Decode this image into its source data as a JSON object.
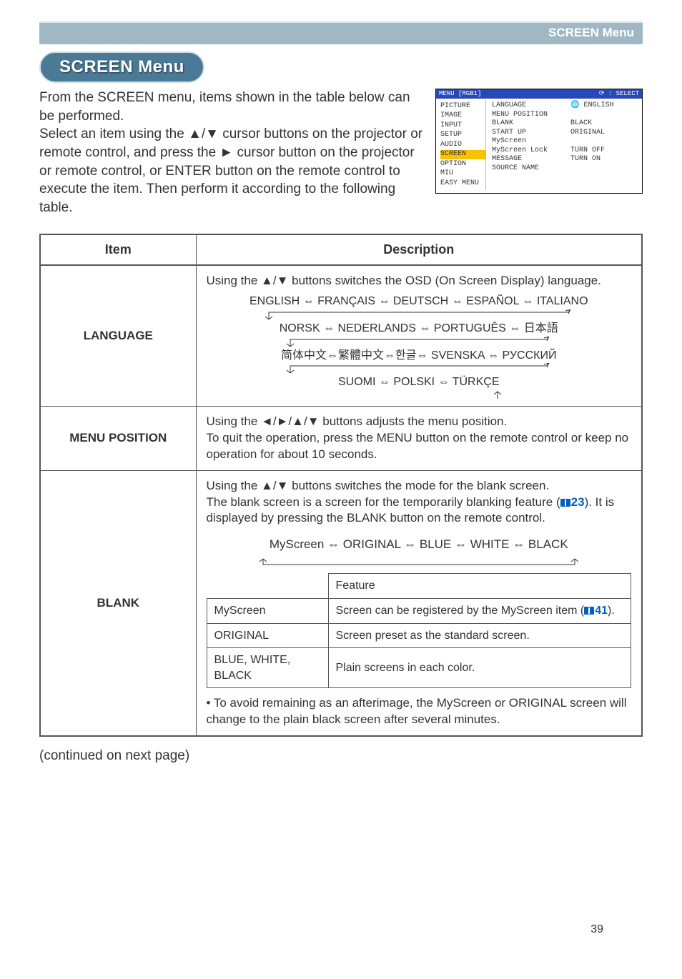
{
  "header": {
    "title": "SCREEN Menu"
  },
  "section_title": "SCREEN Menu",
  "intro_text": "From the SCREEN menu, items shown in the table below can be performed.\nSelect an item using the ▲/▼ cursor buttons on the projector or remote control, and press the ► cursor button on the projector or remote control, or ENTER button on the remote control to execute the item. Then perform it according to the following table.",
  "osd": {
    "head_left": "MENU [RGB1]",
    "head_right": "⟳ : SELECT",
    "left_items": [
      "PICTURE",
      "IMAGE",
      "INPUT",
      "SETUP",
      "AUDIO",
      "SCREEN",
      "OPTION",
      "MIU",
      "EASY MENU"
    ],
    "highlight_index": 5,
    "right_rows": [
      {
        "l": "LANGUAGE",
        "r": "🌐 ENGLISH"
      },
      {
        "l": "MENU POSITION",
        "r": ""
      },
      {
        "l": "BLANK",
        "r": "BLACK"
      },
      {
        "l": "START UP",
        "r": "ORIGINAL"
      },
      {
        "l": "MyScreen",
        "r": ""
      },
      {
        "l": "MyScreen Lock",
        "r": "TURN OFF"
      },
      {
        "l": "MESSAGE",
        "r": "TURN ON"
      },
      {
        "l": "SOURCE NAME",
        "r": ""
      }
    ]
  },
  "table": {
    "head_item": "Item",
    "head_desc": "Description",
    "language": {
      "name": "LANGUAGE",
      "lead": "Using the ▲/▼ buttons switches the OSD (On Screen Display) language.",
      "line1": "ENGLISH ⇔ FRANÇAIS ⇔ DEUTSCH ⇔ ESPAÑOL ⇔ ITALIANO",
      "line2": "NORSK ⇔ NEDERLANDS ⇔ PORTUGUÊS ⇔ 日本語",
      "line3": "简体中文⇔繁體中文⇔한글⇔ SVENSKA ⇔ РУССКИЙ",
      "line4": "SUOMI ⇔ POLSKI ⇔ TÜRKÇE"
    },
    "menu_position": {
      "name": "MENU POSITION",
      "desc": "Using the ◄/►/▲/▼ buttons adjusts the menu position.\nTo quit the operation, press the MENU button on the remote control or keep no operation for about 10 seconds."
    },
    "blank": {
      "name": "BLANK",
      "lead1": "Using the ▲/▼ buttons switches the mode for the blank screen.\nThe blank screen is a screen for the temporarily blanking feature",
      "ref1_text": "23",
      "lead1b": "). It is displayed by pressing the BLANK button on the remote control.",
      "options": "MyScreen ⇔ ORIGINAL ⇔ BLUE ⇔ WHITE ⇔ BLACK",
      "sub_head": "Feature",
      "rows": [
        {
          "k": "MyScreen",
          "v_pre": "Screen can be registered by the MyScreen item (",
          "ref": "41",
          "v_post": ")."
        },
        {
          "k": "ORIGINAL",
          "v": "Screen preset as the standard screen."
        },
        {
          "k": "BLUE, WHITE, BLACK",
          "v": "Plain screens in each color."
        }
      ],
      "note": "• To avoid remaining as an afterimage, the MyScreen or ORIGINAL screen will change to the plain black screen after several minutes."
    }
  },
  "continued": "(continued on next page)",
  "page_number": "39",
  "colors": {
    "header_bar_bg": "#a0b8c4",
    "pill_bg": "#4a7a96",
    "osd_head_bg": "#2648b8",
    "osd_highlight": "#f7c200",
    "border": "#555555",
    "link": "#0060c0"
  }
}
